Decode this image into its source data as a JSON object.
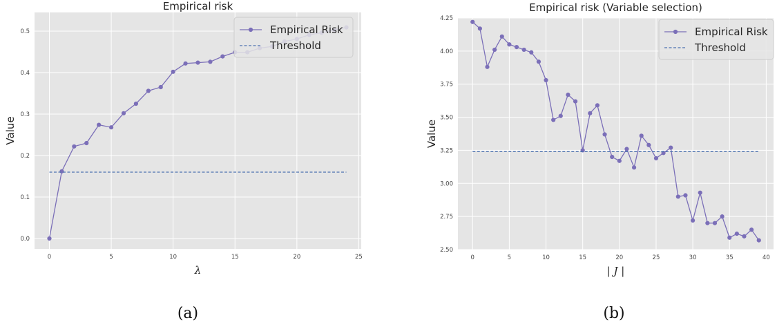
{
  "colors": {
    "background": "#e5e5e5",
    "grid": "#ffffff",
    "risk_line": "#7b6fb8",
    "threshold_line": "#4c72b0",
    "legend_bg": "#e5e5e5",
    "legend_border": "#cccccc"
  },
  "chart_data": [
    {
      "type": "line",
      "title": "Empirical risk",
      "xlabel": "λ",
      "ylabel": "Value",
      "caption": "(a)",
      "xlim": [
        -1.2,
        25.2
      ],
      "ylim": [
        -0.025,
        0.545
      ],
      "xticks": [
        0,
        5,
        10,
        15,
        20,
        25
      ],
      "yticks": [
        0.0,
        0.1,
        0.2,
        0.3,
        0.4,
        0.5
      ],
      "ytick_labels": [
        "0.0",
        "0.1",
        "0.2",
        "0.3",
        "0.4",
        "0.5"
      ],
      "grid": true,
      "legend": "top-right",
      "series": [
        {
          "name": "Empirical Risk",
          "style": "solid-with-markers",
          "x": [
            0,
            1,
            2,
            3,
            4,
            5,
            6,
            7,
            8,
            9,
            10,
            11,
            12,
            13,
            14,
            15,
            16,
            17,
            18,
            19,
            20,
            21,
            22,
            23,
            24
          ],
          "y": [
            0.0,
            0.162,
            0.222,
            0.23,
            0.274,
            0.268,
            0.302,
            0.325,
            0.356,
            0.365,
            0.402,
            0.422,
            0.424,
            0.426,
            0.439,
            0.449,
            0.449,
            0.459,
            0.463,
            0.475,
            0.481,
            0.491,
            0.496,
            0.503,
            0.509
          ]
        },
        {
          "name": "Threshold",
          "style": "dashed",
          "x": [
            0,
            24
          ],
          "y": [
            0.16,
            0.16
          ]
        }
      ]
    },
    {
      "type": "line",
      "title": "Empirical risk (Variable selection)",
      "xlabel": "| J |",
      "ylabel": "Value",
      "caption": "(b)",
      "xlim": [
        -2,
        41
      ],
      "ylim": [
        2.5,
        4.25
      ],
      "xticks": [
        0,
        5,
        10,
        15,
        20,
        25,
        30,
        35,
        40
      ],
      "yticks": [
        2.5,
        2.75,
        3.0,
        3.25,
        3.5,
        3.75,
        4.0,
        4.25
      ],
      "ytick_labels": [
        "2.50",
        "2.75",
        "3.00",
        "3.25",
        "3.50",
        "3.75",
        "4.00",
        "4.25"
      ],
      "grid": true,
      "legend": "top-right",
      "series": [
        {
          "name": "Empirical Risk",
          "style": "solid-with-markers",
          "x": [
            0,
            1,
            2,
            3,
            4,
            5,
            6,
            7,
            8,
            9,
            10,
            11,
            12,
            13,
            14,
            15,
            16,
            17,
            18,
            19,
            20,
            21,
            22,
            23,
            24,
            25,
            26,
            27,
            28,
            29,
            30,
            31,
            32,
            33,
            34,
            35,
            36,
            37,
            38,
            39
          ],
          "y": [
            4.22,
            4.17,
            3.88,
            4.01,
            4.11,
            4.05,
            4.03,
            4.01,
            3.99,
            3.92,
            3.78,
            3.48,
            3.51,
            3.67,
            3.62,
            3.25,
            3.53,
            3.59,
            3.37,
            3.2,
            3.17,
            3.26,
            3.12,
            3.36,
            3.29,
            3.19,
            3.23,
            3.27,
            2.9,
            2.91,
            2.72,
            2.93,
            2.7,
            2.7,
            2.75,
            2.59,
            2.62,
            2.6,
            2.65,
            2.57
          ]
        },
        {
          "name": "Threshold",
          "style": "dashed",
          "x": [
            0,
            39
          ],
          "y": [
            3.24,
            3.24
          ]
        }
      ]
    }
  ]
}
